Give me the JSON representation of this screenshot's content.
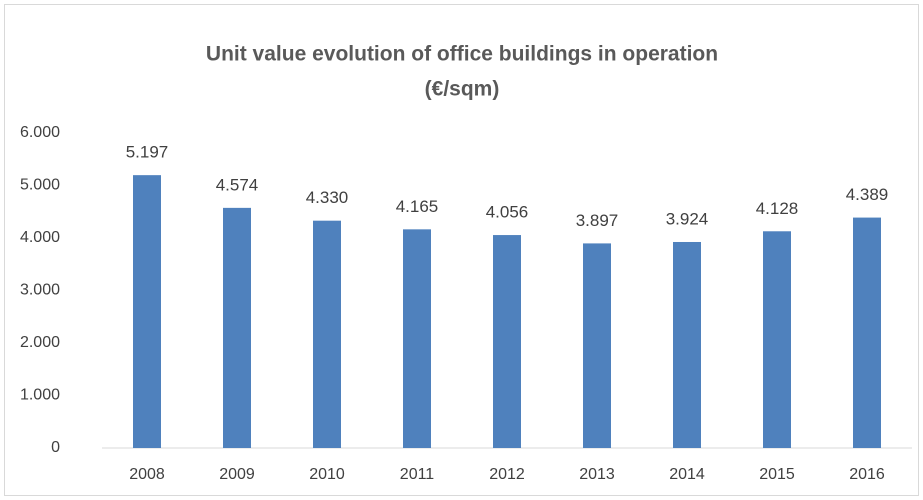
{
  "chart_data": {
    "type": "bar",
    "title": [
      "Unit value evolution of office buildings in operation",
      "(€/sqm)"
    ],
    "categories": [
      "2008",
      "2009",
      "2010",
      "2011",
      "2012",
      "2013",
      "2014",
      "2015",
      "2016"
    ],
    "values": [
      5197,
      4574,
      4330,
      4165,
      4056,
      3897,
      3924,
      4128,
      4389
    ],
    "value_labels": [
      "5.197",
      "4.574",
      "4.330",
      "4.165",
      "4.056",
      "3.897",
      "3.924",
      "4.128",
      "4.389"
    ],
    "color": "#4f81bd",
    "ylim": [
      0,
      6000
    ],
    "yticks": [
      0,
      {
        "value": 1000,
        "label": "1.000"
      },
      {
        "value": 2000,
        "label": "2.000"
      },
      {
        "value": 3000,
        "label": "3.000"
      },
      {
        "value": 4000,
        "label": "4.000"
      },
      {
        "value": 5000,
        "label": "5.000"
      },
      {
        "value": 6000,
        "label": "6.000"
      }
    ],
    "grid": false
  }
}
